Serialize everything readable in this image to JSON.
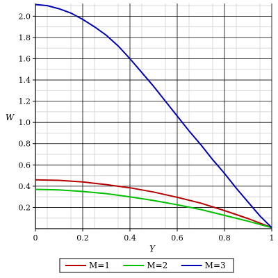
{
  "chart_data": {
    "type": "line",
    "title": "",
    "xlabel": "Y",
    "ylabel": "W",
    "xlim": [
      0,
      1
    ],
    "ylim": [
      0,
      2.12
    ],
    "x_ticks": [
      0,
      0.2,
      0.4,
      0.6,
      0.8,
      1
    ],
    "x_tick_labels": [
      "0",
      "0.2",
      "0.4",
      "0.6",
      "0.8",
      "1"
    ],
    "y_ticks": [
      0.2,
      0.4,
      0.6,
      0.8,
      1.0,
      1.2,
      1.4,
      1.6,
      1.8,
      2.0
    ],
    "y_tick_labels": [
      "0.2",
      "0.4",
      "0.6",
      "0.8",
      "1.0",
      "1.2",
      "1.4",
      "1.6",
      "1.8",
      "2.0"
    ],
    "grid": true,
    "legend_position": "bottom",
    "series": [
      {
        "name": "M=1",
        "color": "#b40000",
        "x": [
          0,
          0.1,
          0.2,
          0.3,
          0.4,
          0.5,
          0.6,
          0.7,
          0.8,
          0.9,
          1.0
        ],
        "y": [
          0.46,
          0.455,
          0.44,
          0.415,
          0.385,
          0.345,
          0.295,
          0.24,
          0.17,
          0.095,
          0.01
        ]
      },
      {
        "name": "M=2",
        "color": "#00c000",
        "x": [
          0,
          0.1,
          0.2,
          0.3,
          0.4,
          0.5,
          0.6,
          0.7,
          0.8,
          0.9,
          1.0
        ],
        "y": [
          0.37,
          0.365,
          0.35,
          0.33,
          0.3,
          0.265,
          0.225,
          0.18,
          0.125,
          0.07,
          0.01
        ]
      },
      {
        "name": "M=3",
        "color": "#0000b4",
        "x": [
          0,
          0.05,
          0.1,
          0.15,
          0.2,
          0.25,
          0.3,
          0.35,
          0.4,
          0.45,
          0.5,
          0.55,
          0.6,
          0.65,
          0.7,
          0.75,
          0.8,
          0.85,
          0.9,
          0.95,
          1.0
        ],
        "y": [
          2.11,
          2.1,
          2.07,
          2.03,
          1.97,
          1.9,
          1.82,
          1.72,
          1.6,
          1.47,
          1.34,
          1.2,
          1.06,
          0.92,
          0.79,
          0.65,
          0.52,
          0.38,
          0.25,
          0.12,
          0.01
        ]
      }
    ]
  }
}
